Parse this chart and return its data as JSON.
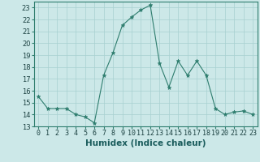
{
  "title": "",
  "xlabel": "Humidex (Indice chaleur)",
  "ylabel": "",
  "x_values": [
    0,
    1,
    2,
    3,
    4,
    5,
    6,
    7,
    8,
    9,
    10,
    11,
    12,
    13,
    14,
    15,
    16,
    17,
    18,
    19,
    20,
    21,
    22,
    23
  ],
  "y_values": [
    15.5,
    14.5,
    14.5,
    14.5,
    14.0,
    13.8,
    13.3,
    17.3,
    19.2,
    21.5,
    22.2,
    22.8,
    23.2,
    18.3,
    16.3,
    18.5,
    17.3,
    18.5,
    17.3,
    14.5,
    14.0,
    14.2,
    14.3,
    14.0
  ],
  "line_color": "#2e7d6e",
  "marker_color": "#2e7d6e",
  "bg_color": "#cce8e8",
  "grid_color": "#a8d0d0",
  "ylim": [
    13,
    23.5
  ],
  "xlim": [
    -0.5,
    23.5
  ],
  "yticks": [
    13,
    14,
    15,
    16,
    17,
    18,
    19,
    20,
    21,
    22,
    23
  ],
  "xticks": [
    0,
    1,
    2,
    3,
    4,
    5,
    6,
    7,
    8,
    9,
    10,
    11,
    12,
    13,
    14,
    15,
    16,
    17,
    18,
    19,
    20,
    21,
    22,
    23
  ],
  "tick_fontsize": 6.0,
  "xlabel_fontsize": 7.5,
  "xlabel_fontweight": "bold"
}
